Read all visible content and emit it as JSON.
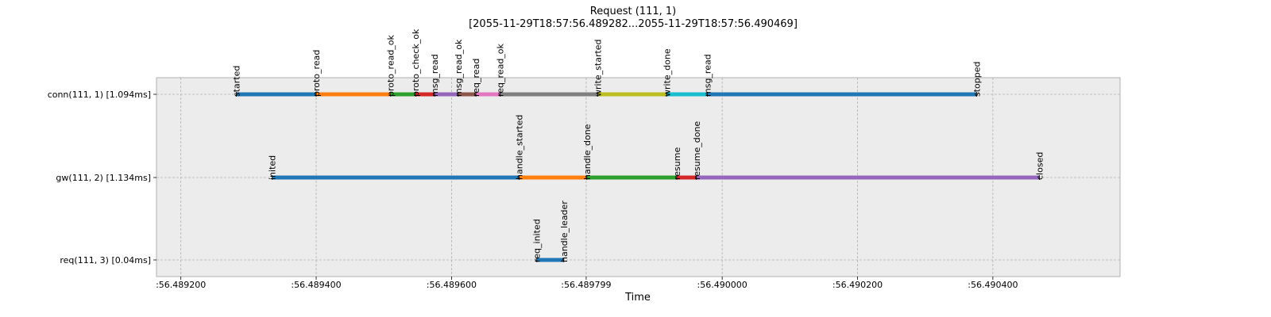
{
  "chart_data": {
    "type": "timeline",
    "title_line1": "Request (111, 1)",
    "title_line2": "[2055-11-29T18:57:56.489282...2055-11-29T18:57:56.490469]",
    "xlabel": "Time",
    "xlim": [
      56.489164,
      56.490588
    ],
    "x_ticks": [
      56.4892,
      56.4894,
      56.4896,
      56.489799,
      56.49,
      56.4902,
      56.4904
    ],
    "x_tick_labels": [
      ":56.489200",
      ":56.489400",
      ":56.489600",
      ":56.489799",
      ":56.490000",
      ":56.490200",
      ":56.490400"
    ],
    "grid": true,
    "rows": [
      {
        "label": "conn(111, 1) [1.094ms]",
        "events": [
          {
            "name": "started",
            "t": 56.489282
          },
          {
            "name": "proto_read",
            "t": 56.4894
          },
          {
            "name": "proto_read_ok",
            "t": 56.48951
          },
          {
            "name": "proto_check_ok",
            "t": 56.489547
          },
          {
            "name": "msg_read",
            "t": 56.489575
          },
          {
            "name": "msg_read_ok",
            "t": 56.48961
          },
          {
            "name": "req_read",
            "t": 56.489636
          },
          {
            "name": "req_read_ok",
            "t": 56.489672
          },
          {
            "name": "write_started",
            "t": 56.489816
          },
          {
            "name": "write_done",
            "t": 56.489918
          },
          {
            "name": "msg_read",
            "t": 56.489978
          },
          {
            "name": "stopped",
            "t": 56.490376
          }
        ],
        "colors": [
          "#1f77b4",
          "#ff7f0e",
          "#2ca02c",
          "#d62728",
          "#9467bd",
          "#8c564b",
          "#e377c2",
          "#7f7f7f",
          "#bcbd22",
          "#17becf",
          "#1f77b4"
        ]
      },
      {
        "label": "gw(111, 2) [1.134ms]",
        "events": [
          {
            "name": "inited",
            "t": 56.489335
          },
          {
            "name": "handle_started",
            "t": 56.4897
          },
          {
            "name": "handle_done",
            "t": 56.4898
          },
          {
            "name": "resume",
            "t": 56.489933
          },
          {
            "name": "resume_done",
            "t": 56.489962
          },
          {
            "name": "closed",
            "t": 56.490469
          }
        ],
        "colors": [
          "#1f77b4",
          "#ff7f0e",
          "#2ca02c",
          "#d62728",
          "#9467bd"
        ]
      },
      {
        "label": "req(111, 3) [0.04ms]",
        "events": [
          {
            "name": "req_inited",
            "t": 56.489726
          },
          {
            "name": "handle_leader",
            "t": 56.489766
          }
        ],
        "colors": [
          "#1f77b4"
        ]
      }
    ]
  }
}
